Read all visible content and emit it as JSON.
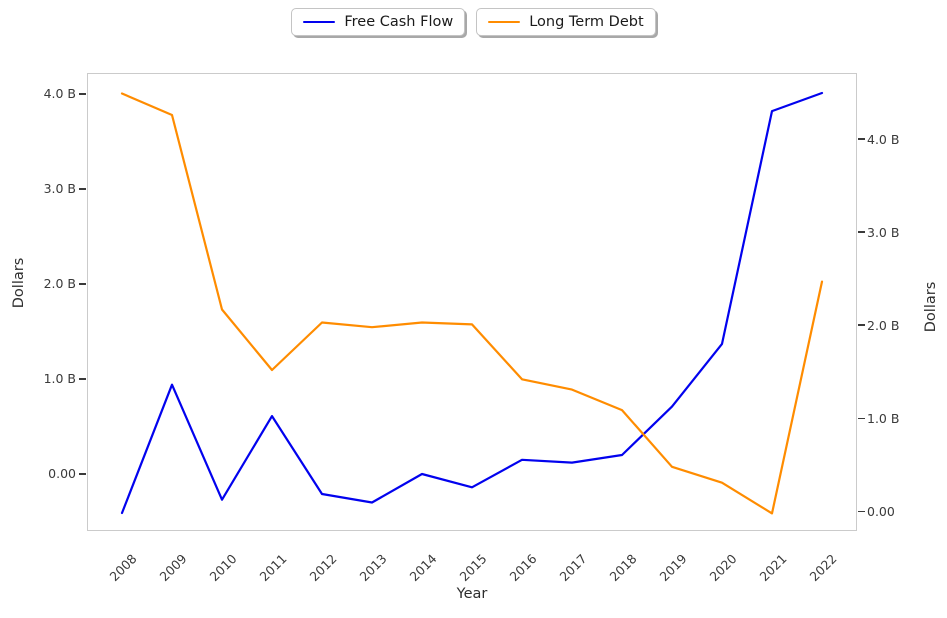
{
  "chart_data": {
    "type": "line",
    "title": "",
    "xlabel": "Year",
    "ylabel_left": "Dollars",
    "ylabel_right": "Dollars",
    "grid": false,
    "legend_position": "top-center",
    "x": [
      2008,
      2009,
      2010,
      2011,
      2012,
      2013,
      2014,
      2015,
      2016,
      2017,
      2018,
      2019,
      2020,
      2021,
      2022
    ],
    "series": [
      {
        "name": "Free Cash Flow",
        "axis": "left",
        "color": "#0202ee",
        "values": [
          -0.4,
          0.95,
          -0.26,
          0.62,
          -0.2,
          -0.29,
          0.01,
          -0.13,
          0.16,
          0.13,
          0.21,
          0.72,
          1.38,
          3.83,
          4.02
        ]
      },
      {
        "name": "Long Term Debt",
        "axis": "right",
        "color": "#ff8c00",
        "values": [
          4.5,
          4.27,
          2.18,
          1.53,
          2.04,
          1.99,
          2.04,
          2.02,
          1.43,
          1.32,
          1.1,
          0.49,
          0.32,
          -0.01,
          2.48
        ]
      }
    ],
    "left_axis": {
      "units": "billions of dollars",
      "range": [
        -0.6,
        4.22
      ],
      "ticks": [
        {
          "value": 0,
          "label": "0.00"
        },
        {
          "value": 1,
          "label": "1.0 B"
        },
        {
          "value": 2,
          "label": "2.0 B"
        },
        {
          "value": 3,
          "label": "3.0 B"
        },
        {
          "value": 4,
          "label": "4.0 B"
        }
      ]
    },
    "right_axis": {
      "units": "billions of dollars",
      "range": [
        -0.21,
        4.71
      ],
      "ticks": [
        {
          "value": 0,
          "label": "0.00"
        },
        {
          "value": 1,
          "label": "1.0 B"
        },
        {
          "value": 2,
          "label": "2.0 B"
        },
        {
          "value": 3,
          "label": "3.0 B"
        },
        {
          "value": 4,
          "label": "4.0 B"
        }
      ]
    }
  },
  "legend": {
    "items": [
      {
        "label": "Free Cash Flow",
        "color": "#0202ee"
      },
      {
        "label": "Long Term Debt",
        "color": "#ff8c00"
      }
    ]
  }
}
